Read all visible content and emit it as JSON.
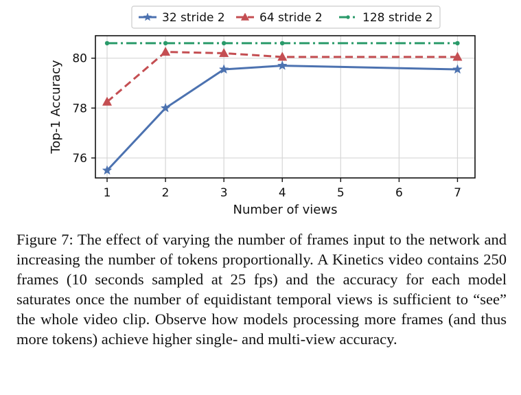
{
  "chart_data": {
    "type": "line",
    "xlabel": "Number of views",
    "ylabel": "Top-1 Accuracy",
    "x_ticks": [
      1,
      2,
      3,
      4,
      5,
      6,
      7
    ],
    "y_ticks": [
      76,
      78,
      80
    ],
    "xlim": [
      0.8,
      7.3
    ],
    "ylim": [
      75.2,
      80.9
    ],
    "grid": true,
    "legend_position": "top",
    "series": [
      {
        "name": "32 stride 2",
        "color": "#4C72B0",
        "line_style": "solid",
        "marker": "star",
        "x": [
          1,
          2,
          3,
          4,
          7
        ],
        "y": [
          75.5,
          78.0,
          79.55,
          79.7,
          79.55
        ]
      },
      {
        "name": "64 stride 2",
        "color": "#C44E52",
        "line_style": "dashed",
        "marker": "triangle",
        "x": [
          1,
          2,
          3,
          4,
          7
        ],
        "y": [
          78.25,
          80.25,
          80.2,
          80.05,
          80.05
        ]
      },
      {
        "name": "128 stride 2",
        "color": "#2A9A6A",
        "line_style": "dashdot",
        "marker": "point",
        "x": [
          1,
          2,
          3,
          4,
          7
        ],
        "y": [
          80.6,
          80.6,
          80.6,
          80.6,
          80.6
        ]
      }
    ]
  },
  "caption": "Figure 7:  The effect of varying the number of frames input to the network and increasing the number of tokens proportionally. A Kinetics video contains 250 frames (10 seconds sampled at 25 fps) and the accuracy for each model saturates once the number of equidistant temporal views is sufficient to “see” the whole video clip. Observe how models processing more frames (and thus more tokens) achieve higher single- and multi-view accuracy."
}
